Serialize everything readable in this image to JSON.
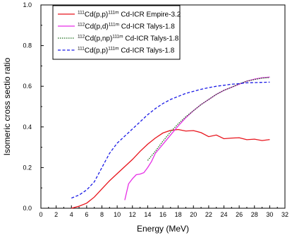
{
  "chart_data": {
    "type": "line",
    "xlabel": "Energy (MeV)",
    "ylabel": "Isomeric cross sectio ratio",
    "xlim": [
      0,
      32
    ],
    "ylim": [
      0.0,
      1.0
    ],
    "x_ticks": [
      "0",
      "2",
      "4",
      "6",
      "8",
      "10",
      "12",
      "14",
      "16",
      "18",
      "20",
      "22",
      "24",
      "26",
      "28",
      "30",
      "32"
    ],
    "y_ticks": [
      "0.0",
      "0.2",
      "0.4",
      "0.6",
      "0.8",
      "1.0"
    ],
    "grid": false,
    "legend_position": "top-left",
    "series": [
      {
        "name": "111Cd(p,p)111m Cd-ICR Empire-3.2",
        "legend": {
          "pre": "111",
          "reaction": "Cd(p,p)",
          "post": "111m",
          "rest": " Cd-ICR Empire-3.2"
        },
        "color": "#e8141c",
        "dash": "solid",
        "x": [
          4,
          5,
          6,
          7,
          8,
          9,
          10,
          11,
          12,
          13,
          14,
          15,
          16,
          17,
          18,
          19,
          20,
          21,
          22,
          23,
          24,
          25,
          26,
          27,
          28,
          29,
          30
        ],
        "y": [
          0.0,
          0.01,
          0.025,
          0.055,
          0.095,
          0.135,
          0.17,
          0.205,
          0.24,
          0.28,
          0.315,
          0.345,
          0.37,
          0.383,
          0.387,
          0.38,
          0.382,
          0.372,
          0.352,
          0.36,
          0.342,
          0.345,
          0.347,
          0.337,
          0.34,
          0.333,
          0.338
        ]
      },
      {
        "name": "112Cd(p,d)111m Cd-ICR Talys-1.8",
        "legend": {
          "pre": "112",
          "reaction": "Cd(p,d)",
          "post": "111m",
          "rest": " Cd-ICR Talys-1.8"
        },
        "color": "#e62ee6",
        "dash": "solid",
        "x": [
          11,
          11.5,
          12,
          12.5,
          13,
          13.5,
          14,
          14.5,
          15,
          16,
          17,
          18,
          19,
          20,
          21,
          22,
          23,
          24,
          25,
          26,
          27,
          28,
          29,
          30
        ],
        "y": [
          0.04,
          0.12,
          0.145,
          0.165,
          0.168,
          0.175,
          0.2,
          0.23,
          0.27,
          0.315,
          0.36,
          0.405,
          0.445,
          0.48,
          0.51,
          0.535,
          0.56,
          0.58,
          0.595,
          0.61,
          0.625,
          0.635,
          0.642,
          0.645
        ]
      },
      {
        "name": "112Cd(p,np)111m Cd-ICR Talys-1.8",
        "legend": {
          "pre": "112",
          "reaction": "Cd(p,np)",
          "post": "111m",
          "rest": " Cd-ICR Talys-1.8"
        },
        "color": "#1a6b1a",
        "dash": "dotted",
        "x": [
          14,
          15,
          16,
          17,
          18,
          19,
          20,
          21,
          22,
          23,
          24,
          25,
          26,
          27,
          28,
          29,
          30
        ],
        "y": [
          0.235,
          0.28,
          0.33,
          0.375,
          0.415,
          0.45,
          0.48,
          0.51,
          0.535,
          0.56,
          0.58,
          0.595,
          0.612,
          0.625,
          0.633,
          0.64,
          0.643
        ]
      },
      {
        "name": "111Cd(p,p)111m Cd-ICR Talys-1.8",
        "legend": {
          "pre": "111",
          "reaction": "Cd(p,p)",
          "post": "111m",
          "rest": " Cd-ICR Talys-1.8"
        },
        "color": "#1a1ae6",
        "dash": "dashed",
        "x": [
          4,
          5,
          6,
          7,
          8,
          9,
          10,
          11,
          12,
          13,
          14,
          15,
          16,
          17,
          18,
          19,
          20,
          21,
          22,
          23,
          24,
          25,
          26,
          27,
          28,
          29,
          30
        ],
        "y": [
          0.05,
          0.065,
          0.09,
          0.13,
          0.2,
          0.27,
          0.32,
          0.355,
          0.39,
          0.425,
          0.46,
          0.49,
          0.515,
          0.535,
          0.55,
          0.565,
          0.575,
          0.585,
          0.593,
          0.6,
          0.605,
          0.61,
          0.613,
          0.617,
          0.618,
          0.619,
          0.62
        ]
      }
    ]
  }
}
